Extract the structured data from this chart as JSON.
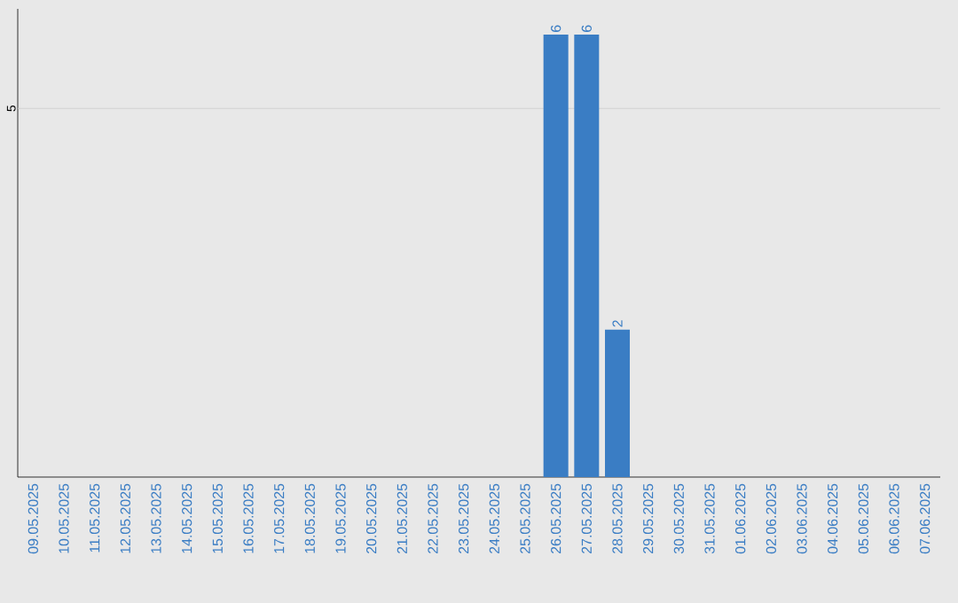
{
  "chart_data": {
    "type": "bar",
    "categories": [
      "09.05.2025",
      "10.05.2025",
      "11.05.2025",
      "12.05.2025",
      "13.05.2025",
      "14.05.2025",
      "15.05.2025",
      "16.05.2025",
      "17.05.2025",
      "18.05.2025",
      "19.05.2025",
      "20.05.2025",
      "21.05.2025",
      "22.05.2025",
      "23.05.2025",
      "24.05.2025",
      "25.05.2025",
      "26.05.2025",
      "27.05.2025",
      "28.05.2025",
      "29.05.2025",
      "30.05.2025",
      "31.05.2025",
      "01.06.2025",
      "02.06.2025",
      "03.06.2025",
      "04.06.2025",
      "05.06.2025",
      "06.06.2025",
      "07.06.2025"
    ],
    "values": [
      null,
      null,
      null,
      null,
      null,
      null,
      null,
      null,
      null,
      null,
      null,
      null,
      null,
      null,
      null,
      null,
      null,
      6,
      6,
      2,
      null,
      null,
      null,
      null,
      null,
      null,
      null,
      null,
      null,
      null
    ],
    "data_labels": true,
    "color": "#3a7dc4",
    "ylim": [
      0,
      6.35
    ],
    "ref_lines": [
      {
        "axis": "y",
        "value": 5,
        "label": "5",
        "color": "#cccccc"
      }
    ]
  }
}
